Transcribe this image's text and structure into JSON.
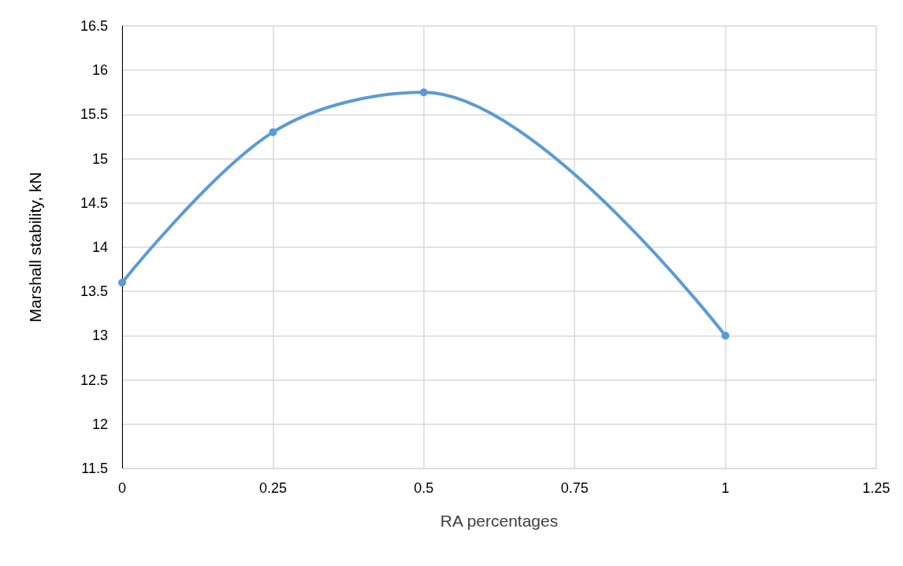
{
  "chart_data": {
    "type": "line",
    "xlabel": "RA percentages",
    "ylabel": "Marshall stability, kN",
    "x": [
      0,
      0.25,
      0.5,
      1
    ],
    "series": [
      {
        "color": "#5b9bd5",
        "values": [
          13.6,
          15.3,
          15.75,
          13.0
        ]
      }
    ],
    "xlim": [
      0,
      1.25
    ],
    "xticks": [
      0,
      0.25,
      0.5,
      0.75,
      1,
      1.25
    ],
    "ylim": [
      11.5,
      16.5
    ],
    "yticks": [
      11.5,
      12,
      12.5,
      13,
      13.5,
      14,
      14.5,
      15,
      15.5,
      16,
      16.5
    ],
    "grid": true,
    "marker": "circle",
    "line_style": "solid"
  }
}
